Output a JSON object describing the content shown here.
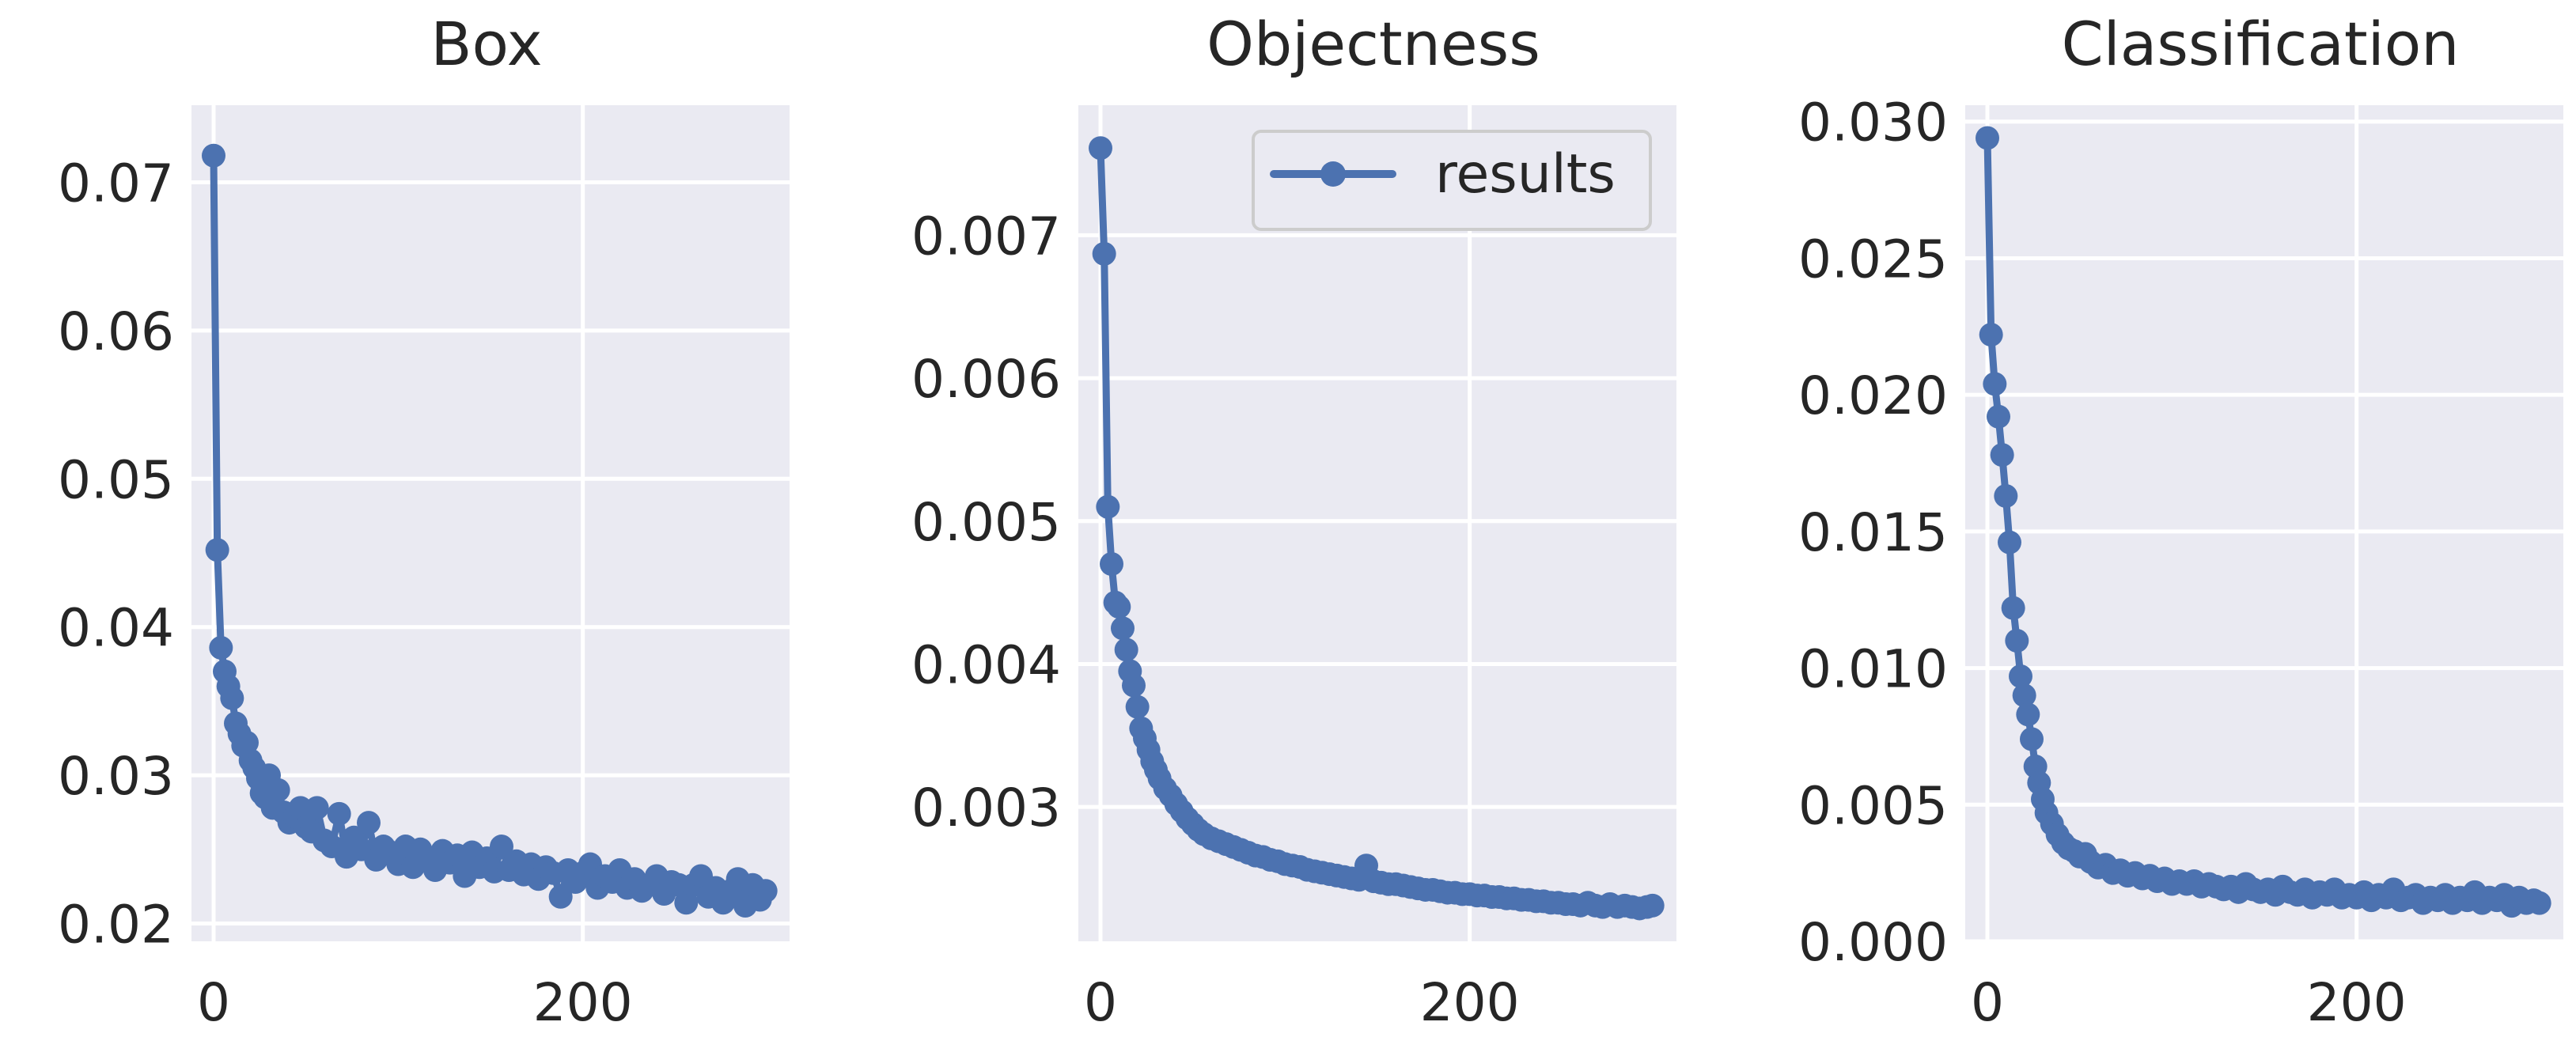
{
  "colors": {
    "axes_bg": "#EAEAF2",
    "grid": "#FFFFFF",
    "line": "#4C72B0",
    "text": "#262626"
  },
  "legend": {
    "label": "results",
    "location": "upper right of middle panel"
  },
  "chart_data": [
    {
      "type": "line",
      "title": "Box",
      "xlabel": "",
      "ylabel": "",
      "xlim": [
        -12,
        312
      ],
      "ylim": [
        0.0188,
        0.0752
      ],
      "xticks": [
        0,
        200
      ],
      "xtick_labels": [
        "0",
        "200"
      ],
      "yticks": [
        0.02,
        0.03,
        0.04,
        0.05,
        0.06,
        0.07
      ],
      "ytick_labels": [
        "0.02",
        "0.03",
        "0.04",
        "0.05",
        "0.06",
        "0.07"
      ],
      "grid": true,
      "series": [
        {
          "name": "results",
          "x": [
            0,
            2,
            4,
            6,
            8,
            10,
            12,
            14,
            16,
            18,
            20,
            22,
            24,
            26,
            28,
            30,
            32,
            35,
            38,
            41,
            44,
            47,
            50,
            53,
            56,
            60,
            64,
            68,
            72,
            76,
            80,
            84,
            88,
            92,
            96,
            100,
            104,
            108,
            112,
            116,
            120,
            124,
            128,
            132,
            136,
            140,
            144,
            148,
            152,
            156,
            160,
            164,
            168,
            172,
            176,
            180,
            184,
            188,
            192,
            196,
            200,
            204,
            208,
            212,
            216,
            220,
            224,
            228,
            232,
            236,
            240,
            244,
            248,
            252,
            256,
            260,
            264,
            268,
            272,
            276,
            280,
            284,
            288,
            292,
            296,
            299
          ],
          "y": [
            0.0718,
            0.0452,
            0.0386,
            0.037,
            0.036,
            0.0352,
            0.0335,
            0.0328,
            0.032,
            0.0322,
            0.031,
            0.0305,
            0.0298,
            0.0288,
            0.0285,
            0.03,
            0.0278,
            0.029,
            0.0275,
            0.0268,
            0.0272,
            0.0278,
            0.0265,
            0.0262,
            0.0278,
            0.0256,
            0.0252,
            0.0274,
            0.0245,
            0.0258,
            0.025,
            0.0268,
            0.0243,
            0.0252,
            0.0248,
            0.024,
            0.0252,
            0.0238,
            0.025,
            0.0244,
            0.0236,
            0.0249,
            0.0241,
            0.0246,
            0.0232,
            0.0248,
            0.0238,
            0.0244,
            0.0235,
            0.0252,
            0.0236,
            0.0242,
            0.0233,
            0.024,
            0.023,
            0.0238,
            0.0234,
            0.0218,
            0.0236,
            0.0228,
            0.0234,
            0.024,
            0.0224,
            0.0232,
            0.0228,
            0.0236,
            0.0224,
            0.023,
            0.0222,
            0.0226,
            0.0232,
            0.022,
            0.0228,
            0.0226,
            0.0214,
            0.0226,
            0.0232,
            0.0218,
            0.0224,
            0.0214,
            0.0222,
            0.023,
            0.0212,
            0.0226,
            0.0216,
            0.0222
          ]
        }
      ]
    },
    {
      "type": "line",
      "title": "Objectness",
      "xlabel": "",
      "ylabel": "",
      "xlim": [
        -12,
        312
      ],
      "ylim": [
        0.00206,
        0.00791
      ],
      "xticks": [
        0,
        200
      ],
      "xtick_labels": [
        "0",
        "200"
      ],
      "yticks": [
        0.003,
        0.004,
        0.005,
        0.006,
        0.007
      ],
      "ytick_labels": [
        "0.003",
        "0.004",
        "0.005",
        "0.006",
        "0.007"
      ],
      "grid": true,
      "series": [
        {
          "name": "results",
          "x": [
            0,
            2,
            4,
            6,
            8,
            10,
            12,
            14,
            16,
            18,
            20,
            22,
            24,
            26,
            28,
            30,
            32,
            35,
            38,
            41,
            44,
            47,
            50,
            53,
            56,
            60,
            64,
            68,
            72,
            76,
            80,
            84,
            88,
            92,
            96,
            100,
            104,
            108,
            112,
            116,
            120,
            124,
            128,
            132,
            136,
            140,
            144,
            148,
            152,
            156,
            160,
            164,
            168,
            172,
            176,
            180,
            184,
            188,
            192,
            196,
            200,
            204,
            208,
            212,
            216,
            220,
            224,
            228,
            232,
            236,
            240,
            244,
            248,
            252,
            256,
            260,
            264,
            268,
            272,
            276,
            280,
            284,
            288,
            292,
            296,
            299
          ],
          "y": [
            0.00761,
            0.00687,
            0.0051,
            0.0047,
            0.00443,
            0.0044,
            0.00425,
            0.0041,
            0.00395,
            0.00385,
            0.0037,
            0.00355,
            0.00348,
            0.0034,
            0.00332,
            0.00326,
            0.0032,
            0.00313,
            0.00308,
            0.00302,
            0.00297,
            0.00292,
            0.00288,
            0.00284,
            0.00281,
            0.00278,
            0.00276,
            0.00274,
            0.00272,
            0.0027,
            0.00268,
            0.00266,
            0.00265,
            0.00263,
            0.00262,
            0.0026,
            0.00259,
            0.00258,
            0.00256,
            0.00255,
            0.00254,
            0.00253,
            0.00252,
            0.00251,
            0.0025,
            0.00249,
            0.00259,
            0.00248,
            0.00247,
            0.00246,
            0.00246,
            0.00245,
            0.00244,
            0.00243,
            0.00242,
            0.00242,
            0.00241,
            0.0024,
            0.0024,
            0.00239,
            0.00239,
            0.00238,
            0.00238,
            0.00237,
            0.00237,
            0.00236,
            0.00236,
            0.00235,
            0.00235,
            0.00234,
            0.00234,
            0.00233,
            0.00233,
            0.00232,
            0.00232,
            0.00231,
            0.00233,
            0.00231,
            0.0023,
            0.00232,
            0.0023,
            0.00231,
            0.0023,
            0.00229,
            0.0023,
            0.00231
          ]
        }
      ]
    },
    {
      "type": "line",
      "title": "Classification",
      "xlabel": "",
      "ylabel": "",
      "xlim": [
        -12,
        312
      ],
      "ylim": [
        0.0,
        0.0306
      ],
      "xticks": [
        0,
        200
      ],
      "xtick_labels": [
        "0",
        "200"
      ],
      "yticks": [
        0.0,
        0.005,
        0.01,
        0.015,
        0.02,
        0.025,
        0.03
      ],
      "ytick_labels": [
        "0.000",
        "0.005",
        "0.010",
        "0.015",
        "0.020",
        "0.025",
        "0.030"
      ],
      "grid": true,
      "series": [
        {
          "name": "results",
          "x": [
            0,
            2,
            4,
            6,
            8,
            10,
            12,
            14,
            16,
            18,
            20,
            22,
            24,
            26,
            28,
            30,
            32,
            35,
            38,
            41,
            44,
            47,
            50,
            53,
            56,
            60,
            64,
            68,
            72,
            76,
            80,
            84,
            88,
            92,
            96,
            100,
            104,
            108,
            112,
            116,
            120,
            124,
            128,
            132,
            136,
            140,
            144,
            148,
            152,
            156,
            160,
            164,
            168,
            172,
            176,
            180,
            184,
            188,
            192,
            196,
            200,
            204,
            208,
            212,
            216,
            220,
            224,
            228,
            232,
            236,
            240,
            244,
            248,
            252,
            256,
            260,
            264,
            268,
            272,
            276,
            280,
            284,
            288,
            292,
            296,
            299
          ],
          "y": [
            0.0294,
            0.0222,
            0.0204,
            0.0192,
            0.0178,
            0.0163,
            0.0146,
            0.0122,
            0.011,
            0.0097,
            0.009,
            0.0083,
            0.0074,
            0.0064,
            0.0058,
            0.0052,
            0.0047,
            0.0043,
            0.0039,
            0.0036,
            0.0034,
            0.0033,
            0.0031,
            0.0032,
            0.0029,
            0.0027,
            0.0028,
            0.0025,
            0.0026,
            0.0024,
            0.0025,
            0.0023,
            0.0024,
            0.0022,
            0.0023,
            0.0021,
            0.0022,
            0.0021,
            0.0022,
            0.002,
            0.0021,
            0.002,
            0.0019,
            0.002,
            0.0018,
            0.0021,
            0.0019,
            0.0018,
            0.0019,
            0.0017,
            0.002,
            0.0018,
            0.0017,
            0.0019,
            0.0016,
            0.0018,
            0.0017,
            0.0019,
            0.0016,
            0.0017,
            0.0016,
            0.0018,
            0.0015,
            0.0017,
            0.0016,
            0.0019,
            0.0015,
            0.0016,
            0.0017,
            0.0014,
            0.0016,
            0.0015,
            0.0017,
            0.0014,
            0.0016,
            0.0015,
            0.0018,
            0.0014,
            0.0016,
            0.0015,
            0.0017,
            0.0013,
            0.0016,
            0.0014,
            0.0015,
            0.0014
          ]
        }
      ]
    }
  ]
}
